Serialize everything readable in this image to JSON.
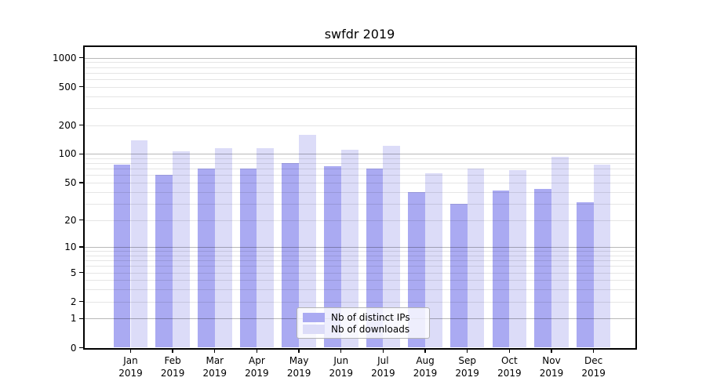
{
  "chart_data": {
    "type": "bar",
    "title": "swfdr 2019",
    "categories": [
      "Jan 2019",
      "Feb 2019",
      "Mar 2019",
      "Apr 2019",
      "May 2019",
      "Jun 2019",
      "Jul 2019",
      "Aug 2019",
      "Sep 2019",
      "Oct 2019",
      "Nov 2019",
      "Dec 2019"
    ],
    "series": [
      {
        "name": "Nb of distinct IPs",
        "color": "#aaaaf2",
        "values": [
          78,
          61,
          70,
          71,
          80,
          74,
          70,
          40,
          30,
          41,
          43,
          31
        ]
      },
      {
        "name": "Nb of downloads",
        "color": "#dcdcf8",
        "values": [
          138,
          106,
          114,
          116,
          157,
          110,
          122,
          63,
          70,
          68,
          94,
          78
        ]
      }
    ],
    "xlabel": "",
    "ylabel": "",
    "yscale": "log1p",
    "yticks": [
      0,
      1,
      2,
      5,
      10,
      20,
      50,
      100,
      200,
      500,
      1000
    ],
    "ylim": [
      0,
      1290
    ],
    "grid": "on",
    "legend_position": "lower center inside plot"
  }
}
